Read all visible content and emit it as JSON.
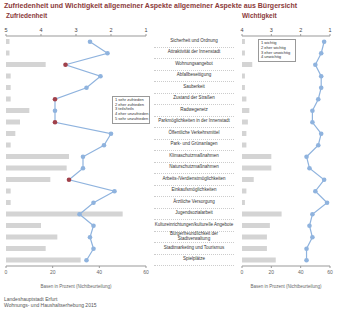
{
  "title": "Zufriedenheit und Wichtigkeit allgemeiner Aspekte allgemeiner Aspekte aus Bürgersicht",
  "source": [
    "Landeshauptstadt Erfurt",
    "Wohnungs- und Haushaltserhebung 2015"
  ],
  "chart_data": [
    {
      "type": "bar",
      "orientation": "horizontal",
      "title": "Zufriedenheit",
      "xlabel": "Basen in Prozent (Nichtbeurteilung)",
      "categories": [
        "Sicherheit und Ordnung",
        "Attraktivität der Innenstadt",
        "Wohnungsangebot",
        "Abfallbeseitigung",
        "Sauberkeit",
        "Zustand der Straßen",
        "Radwegenetz",
        "Parkmöglichkeiten in der Innenstadt",
        "Öffentliche Verkehrsmittel",
        "Park- und Grünanlagen",
        "Klimaschutzmaßnahmen",
        "Naturschutzmaßnahmen",
        "Arbeits-/Verdienstmöglichkeiten",
        "Einkaufsmöglichkeiten",
        "Ärztliche Versorgung",
        "Jugendsozialarbeit",
        "Kultureinrichtungen/kulturelle Angebote",
        "Bürgerfreundlichkeit der Stadtverwaltung",
        "Stadtmarketing und Tourismus",
        "Spielplätze"
      ],
      "xlim": [
        0,
        60
      ],
      "xticks": [
        0,
        20,
        40,
        60
      ],
      "x2lim": [
        5,
        1
      ],
      "x2ticks": [
        5,
        4,
        3,
        2,
        1
      ],
      "annotation": [
        "1 sehr zufrieden",
        "2 eher zufrieden",
        "3 teils/teils",
        "4 eher unzufrieden",
        "5 sehr unzufrieden"
      ],
      "series": [
        {
          "type": "bar",
          "color": "#d4d4d4",
          "values": [
            1.5,
            1.5,
            17,
            2,
            2,
            2,
            10,
            6,
            4,
            2,
            27,
            26,
            19,
            2,
            2,
            50,
            15,
            22,
            17,
            32
          ]
        },
        {
          "type": "line",
          "axis": "x2",
          "color": "#8fb3de",
          "marker": "circle",
          "colors": [
            "#8fb3de",
            "#8fb3de",
            "#a0404a",
            "#8fb3de",
            "#8fb3de",
            "#a0404a",
            "#8fb3de",
            "#a0404a",
            "#8fb3de",
            "#8fb3de",
            "#8fb3de",
            "#8fb3de",
            "#a0404a",
            "#8fb3de",
            "#8fb3de",
            "#8fb3de",
            "#8fb3de",
            "#8fb3de",
            "#8fb3de",
            "#8fb3de"
          ],
          "values": [
            2.6,
            2.1,
            3.3,
            2.3,
            2.7,
            3.6,
            3.6,
            3.6,
            2.0,
            2.2,
            2.8,
            2.8,
            3.2,
            1.9,
            2.5,
            2.9,
            2.5,
            2.6,
            2.5,
            2.7
          ]
        }
      ]
    },
    {
      "type": "bar",
      "orientation": "horizontal",
      "title": "Wichtigkeit",
      "xlabel": "Basen in Prozent (Nichtbeurteilung)",
      "xlim": [
        0,
        60
      ],
      "xticks": [
        0,
        20,
        40,
        60
      ],
      "x2lim": [
        4,
        1
      ],
      "x2ticks": [
        4,
        3,
        2,
        1
      ],
      "annotation": [
        "1 wichtig",
        "2 eher wichtig",
        "3 eher unwichtig",
        "4 unwichtig"
      ],
      "series": [
        {
          "type": "bar",
          "color": "#d4d4d4",
          "values": [
            2,
            2,
            7,
            2,
            2,
            3,
            5,
            4,
            3,
            3,
            20,
            20,
            8,
            3,
            2,
            27,
            19,
            17,
            17,
            23
          ]
        },
        {
          "type": "line",
          "axis": "x2",
          "color": "#8fb3de",
          "marker": "circle",
          "values": [
            1.2,
            1.3,
            1.5,
            1.3,
            1.3,
            1.4,
            1.6,
            1.6,
            1.3,
            1.4,
            1.8,
            1.7,
            1.2,
            1.5,
            1.1,
            1.6,
            1.7,
            1.6,
            1.8,
            1.8
          ]
        }
      ]
    }
  ]
}
